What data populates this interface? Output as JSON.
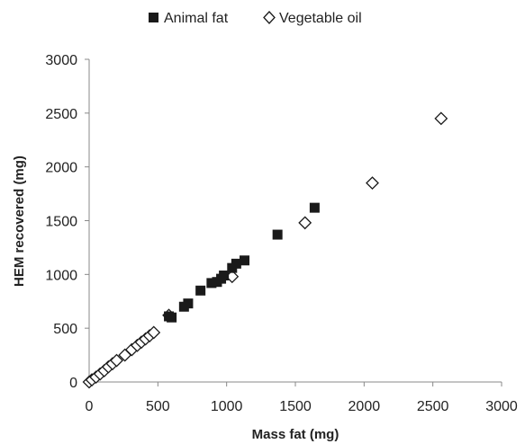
{
  "chart_data": {
    "type": "scatter",
    "xlabel": "Mass fat (mg)",
    "ylabel": "HEM recovered (mg)",
    "xlim": [
      0,
      3000
    ],
    "ylim": [
      0,
      3000
    ],
    "xticks": [
      "0",
      "500",
      "1000",
      "1500",
      "2000",
      "2500",
      "3000"
    ],
    "yticks": [
      "0",
      "500",
      "1000",
      "1500",
      "2000",
      "2500",
      "3000"
    ],
    "grid": false,
    "legend_position": "top",
    "series": [
      {
        "name": "Animal fat",
        "marker": "filled-square",
        "color": "#1a1a1a",
        "points": [
          [
            580,
            610
          ],
          [
            600,
            600
          ],
          [
            690,
            700
          ],
          [
            720,
            730
          ],
          [
            810,
            850
          ],
          [
            890,
            920
          ],
          [
            930,
            930
          ],
          [
            960,
            960
          ],
          [
            980,
            990
          ],
          [
            1040,
            1060
          ],
          [
            1070,
            1100
          ],
          [
            1130,
            1130
          ],
          [
            1370,
            1370
          ],
          [
            1640,
            1620
          ]
        ]
      },
      {
        "name": "Vegetable oil",
        "marker": "open-diamond",
        "color": "#1a1a1a",
        "points": [
          [
            0,
            0
          ],
          [
            20,
            20
          ],
          [
            50,
            45
          ],
          [
            80,
            75
          ],
          [
            110,
            105
          ],
          [
            140,
            140
          ],
          [
            170,
            170
          ],
          [
            200,
            200
          ],
          [
            260,
            250
          ],
          [
            310,
            300
          ],
          [
            350,
            340
          ],
          [
            380,
            370
          ],
          [
            410,
            400
          ],
          [
            440,
            430
          ],
          [
            470,
            460
          ],
          [
            580,
            620
          ],
          [
            1040,
            980
          ],
          [
            1570,
            1480
          ],
          [
            2060,
            1850
          ],
          [
            2560,
            2450
          ]
        ]
      }
    ]
  }
}
